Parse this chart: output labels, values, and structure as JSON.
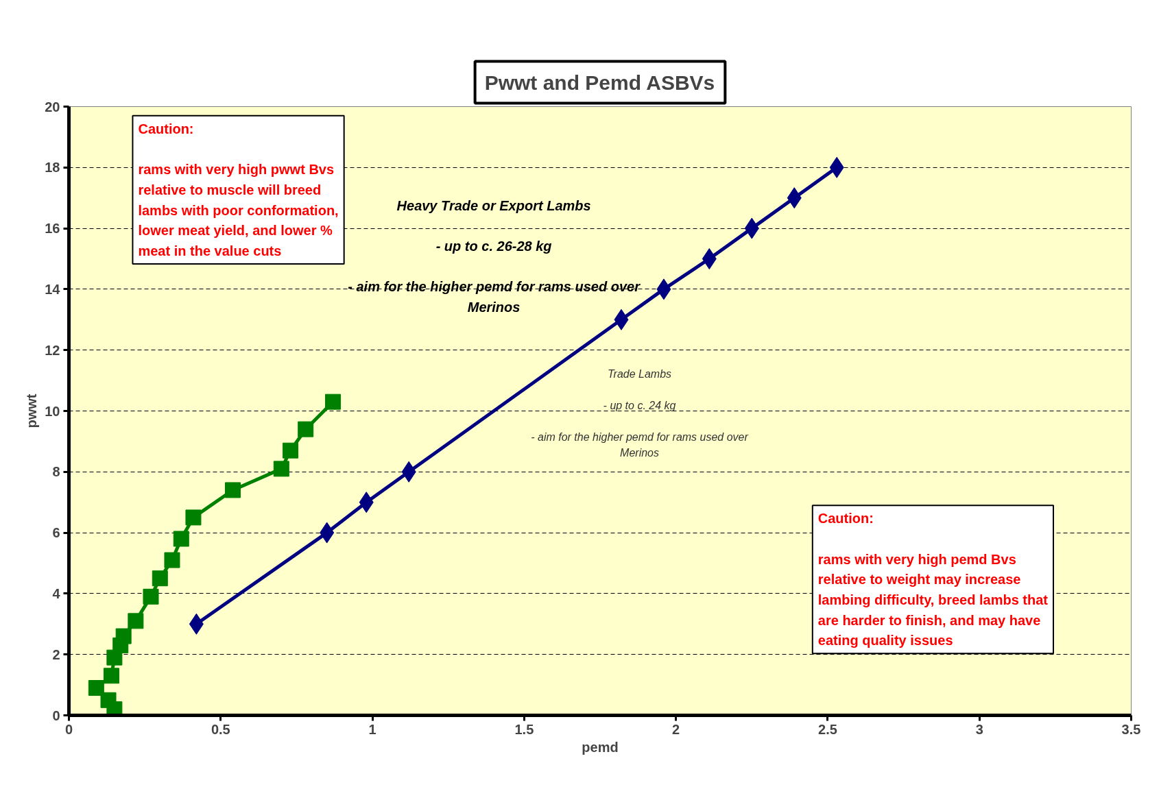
{
  "chart_data": {
    "type": "line",
    "title": "Pwwt and Pemd ASBVs",
    "xlabel": "pemd",
    "ylabel": "pwwt",
    "xlim": [
      0,
      3.5
    ],
    "xticks": [
      0,
      0.5,
      1,
      1.5,
      2,
      2.5,
      3,
      3.5
    ],
    "ylim": [
      0,
      20
    ],
    "yticks": [
      0,
      2,
      4,
      6,
      8,
      10,
      12,
      14,
      16,
      18,
      20
    ],
    "grid": "y",
    "series": [
      {
        "color": "#008000",
        "marker": "square",
        "x": [
          0.15,
          0.13,
          0.09,
          0.14,
          0.15,
          0.17,
          0.18,
          0.22,
          0.27,
          0.3,
          0.34,
          0.37,
          0.41,
          0.54,
          0.7,
          0.73,
          0.78,
          0.87
        ],
        "values": [
          0.2,
          0.5,
          0.9,
          1.3,
          1.9,
          2.3,
          2.6,
          3.1,
          3.9,
          4.5,
          5.1,
          5.8,
          6.5,
          7.4,
          8.1,
          8.7,
          9.4,
          10.3
        ]
      },
      {
        "color": "#000080",
        "marker": "diamond",
        "x": [
          0.42,
          0.85,
          0.98,
          1.12,
          1.82,
          1.96,
          2.11,
          2.25,
          2.39,
          2.53
        ],
        "values": [
          3.0,
          6.0,
          7.0,
          8.0,
          13.0,
          14.0,
          15.0,
          16.0,
          17.0,
          18.0
        ]
      }
    ],
    "annotations": [
      "Caution:\n\nrams with very high pwwt Bvs\nrelative to muscle will breed\nlambs with poor conformation,\nlower meat yield, and lower %\nmeat in the value cuts",
      "Caution:\n\nrams with very high pemd Bvs\nrelative to weight may increase\nlambing difficulty, breed lambs that\nare harder to finish, and may have\neating quality issues",
      "Heavy Trade or Export Lambs\n\n- up to c. 26-28 kg\n\n- aim for the higher pemd for rams used over\nMerinos",
      "Trade Lambs\n\n- up to c. 24 kg\n\n- aim for the higher pemd for rams used over\nMerinos"
    ]
  }
}
